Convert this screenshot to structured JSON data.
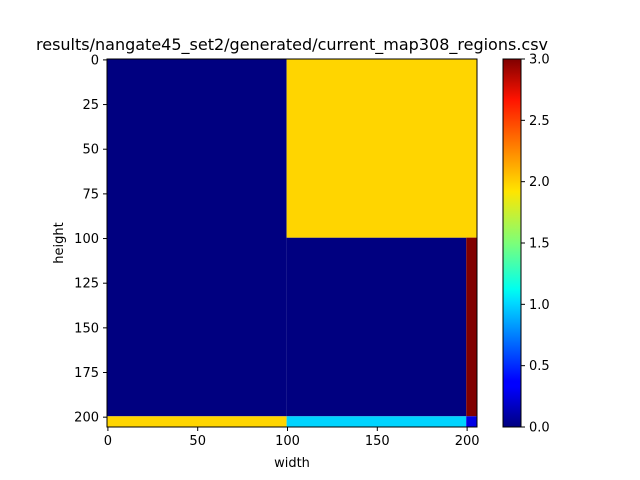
{
  "chart_data": {
    "type": "heatmap",
    "title": "results/nangate45_set2/generated/current_map308_regions.csv",
    "xlabel": "width",
    "ylabel": "height",
    "xlim": [
      -0.5,
      205.5
    ],
    "ylim": [
      205.5,
      -0.5
    ],
    "x_ticks": [
      0,
      50,
      100,
      150,
      200
    ],
    "y_ticks": [
      0,
      25,
      50,
      75,
      100,
      125,
      150,
      175,
      200
    ],
    "colormap": "jet",
    "value_range": [
      0,
      3
    ],
    "colorbar_ticks": [
      "0.0",
      "0.5",
      "1.0",
      "1.5",
      "2.0",
      "2.5",
      "3.0"
    ],
    "regions": [
      {
        "x": [
          0,
          100
        ],
        "y": [
          0,
          200
        ],
        "value": 0
      },
      {
        "x": [
          100,
          200
        ],
        "y": [
          100,
          200
        ],
        "value": 0
      },
      {
        "x": [
          100,
          206
        ],
        "y": [
          0,
          100
        ],
        "value": 2
      },
      {
        "x": [
          200,
          206
        ],
        "y": [
          100,
          200
        ],
        "value": 3
      },
      {
        "x": [
          0,
          100
        ],
        "y": [
          200,
          206
        ],
        "value": 2
      },
      {
        "x": [
          100,
          200
        ],
        "y": [
          200,
          206
        ],
        "value": 1
      },
      {
        "x": [
          200,
          206
        ],
        "y": [
          200,
          206
        ],
        "value": 0.3
      }
    ]
  }
}
